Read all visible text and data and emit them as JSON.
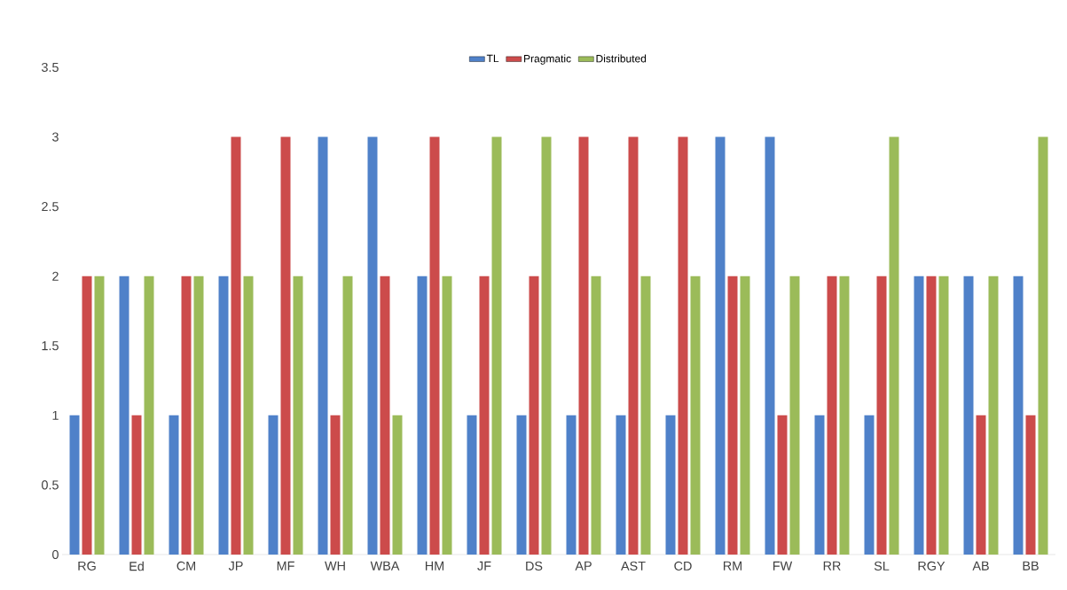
{
  "chart_data": {
    "type": "bar",
    "categories": [
      "RG",
      "Ed",
      "CM",
      "JP",
      "MF",
      "WH",
      "WBA",
      "HM",
      "JF",
      "DS",
      "AP",
      "AST",
      "CD",
      "RM",
      "FW",
      "RR",
      "SL",
      "RGY",
      "AB",
      "BB"
    ],
    "series": [
      {
        "name": "TL",
        "color": "#4f81c9",
        "values": [
          1,
          2,
          1,
          2,
          1,
          3,
          3,
          2,
          1,
          1,
          1,
          1,
          1,
          3,
          3,
          1,
          1,
          2,
          2,
          2
        ]
      },
      {
        "name": "Pragmatic",
        "color": "#cc4b4b",
        "values": [
          2,
          1,
          2,
          3,
          3,
          1,
          2,
          3,
          2,
          2,
          3,
          3,
          3,
          2,
          1,
          2,
          2,
          2,
          1,
          1
        ]
      },
      {
        "name": "Distributed",
        "color": "#9bbb59",
        "values": [
          2,
          2,
          2,
          2,
          2,
          2,
          1,
          2,
          3,
          3,
          2,
          2,
          2,
          2,
          2,
          2,
          3,
          2,
          2,
          3
        ]
      }
    ],
    "ylim": [
      0,
      3.5
    ],
    "yticks": [
      0,
      0.5,
      1,
      1.5,
      2,
      2.5,
      3,
      3.5
    ],
    "legend": "top",
    "grid": false
  }
}
